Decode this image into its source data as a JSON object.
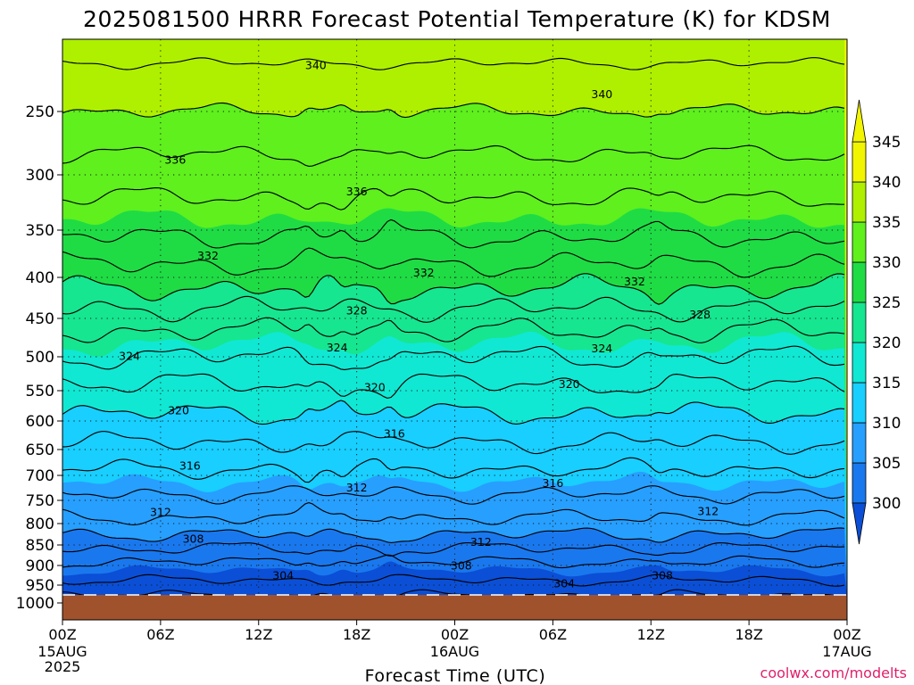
{
  "title": "2025081500 HRRR Forecast Potential Temperature (K) for KDSM",
  "credit": "coolwx.com/modelts",
  "chart_data": {
    "type": "heatmap",
    "title": "2025081500 HRRR Forecast Potential Temperature (K) for KDSM",
    "xlabel": "Forecast Time (UTC)",
    "ylabel": "",
    "x_range_hours": [
      0,
      48
    ],
    "y_range_hpa": [
      200,
      1000
    ],
    "y_scale": "pressure (top 200 hPa, bottom 1000 hPa)",
    "grid": true,
    "x_ticks": [
      {
        "h": 0,
        "label": "00Z",
        "sub": [
          "15AUG",
          "2025"
        ]
      },
      {
        "h": 6,
        "label": "06Z"
      },
      {
        "h": 12,
        "label": "12Z"
      },
      {
        "h": 18,
        "label": "18Z"
      },
      {
        "h": 24,
        "label": "00Z",
        "sub": [
          "16AUG"
        ]
      },
      {
        "h": 30,
        "label": "06Z"
      },
      {
        "h": 36,
        "label": "12Z"
      },
      {
        "h": 42,
        "label": "18Z"
      },
      {
        "h": 48,
        "label": "00Z",
        "sub": [
          "17AUG"
        ]
      }
    ],
    "y_ticks": [
      250,
      300,
      350,
      400,
      450,
      500,
      550,
      600,
      650,
      700,
      750,
      800,
      850,
      900,
      950,
      1000
    ],
    "colorbar": {
      "placement": "right",
      "labels": [
        300,
        305,
        310,
        315,
        320,
        325,
        330,
        335,
        340,
        345
      ],
      "colors": [
        "#0b4fd6",
        "#1a78ee",
        "#279fff",
        "#18cfff",
        "#10e8d3",
        "#16e68f",
        "#1fdc45",
        "#5ff01d",
        "#aef000",
        "#f2f500"
      ]
    },
    "surface_color": "#a0522d",
    "profile": {
      "pressure_hpa": [
        975,
        950,
        900,
        850,
        800,
        750,
        700,
        650,
        600,
        550,
        500,
        450,
        400,
        350,
        300,
        250,
        200
      ],
      "theta_k": [
        302.5,
        303.5,
        305.5,
        308.5,
        311.5,
        313.5,
        315.5,
        317.5,
        319.5,
        321.5,
        324,
        327,
        331,
        334.5,
        337,
        340,
        343
      ]
    },
    "contour_labels": [
      {
        "text": "340",
        "h": 15.5,
        "p": 218
      },
      {
        "text": "340",
        "h": 33,
        "p": 238
      },
      {
        "text": "336",
        "h": 6.9,
        "p": 288
      },
      {
        "text": "336",
        "h": 18,
        "p": 315
      },
      {
        "text": "332",
        "h": 8.9,
        "p": 377
      },
      {
        "text": "332",
        "h": 22.1,
        "p": 395
      },
      {
        "text": "332",
        "h": 35,
        "p": 405
      },
      {
        "text": "328",
        "h": 18,
        "p": 440
      },
      {
        "text": "328",
        "h": 39,
        "p": 445
      },
      {
        "text": "324",
        "h": 4.1,
        "p": 499
      },
      {
        "text": "324",
        "h": 16.8,
        "p": 488
      },
      {
        "text": "324",
        "h": 33,
        "p": 489
      },
      {
        "text": "320",
        "h": 19.1,
        "p": 545
      },
      {
        "text": "320",
        "h": 31,
        "p": 540
      },
      {
        "text": "320",
        "h": 7.1,
        "p": 582
      },
      {
        "text": "316",
        "h": 20.3,
        "p": 622
      },
      {
        "text": "316",
        "h": 7.8,
        "p": 681
      },
      {
        "text": "316",
        "h": 30,
        "p": 715
      },
      {
        "text": "312",
        "h": 18,
        "p": 724
      },
      {
        "text": "312",
        "h": 6,
        "p": 775
      },
      {
        "text": "312",
        "h": 39.5,
        "p": 773
      },
      {
        "text": "312",
        "h": 25.6,
        "p": 843
      },
      {
        "text": "308",
        "h": 8,
        "p": 835
      },
      {
        "text": "308",
        "h": 24.4,
        "p": 900
      },
      {
        "text": "308",
        "h": 36.7,
        "p": 925
      },
      {
        "text": "304",
        "h": 13.5,
        "p": 925
      },
      {
        "text": "304",
        "h": 30.7,
        "p": 945
      }
    ]
  }
}
